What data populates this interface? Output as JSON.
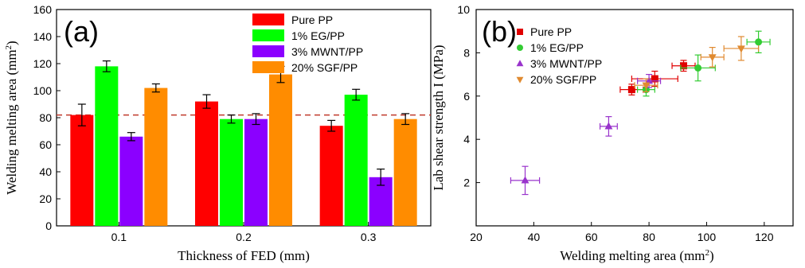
{
  "chart_data": [
    {
      "type": "bar",
      "panel_label": "(a)",
      "xlabel": "Thickness of FED (mm)",
      "ylabel": "Welding melting area (mm",
      "ylabel_sup": "2",
      "ylabel_close": ")",
      "ylim": [
        0,
        160
      ],
      "yticks": [
        "0",
        "20",
        "40",
        "60",
        "80",
        "100",
        "120",
        "140",
        "160"
      ],
      "categories": [
        "0.1",
        "0.2",
        "0.3"
      ],
      "reference_line": 82,
      "legend_position": "top-right",
      "series": [
        {
          "name": "Pure PP",
          "color": "#ff0000",
          "values": [
            82,
            92,
            74
          ],
          "errors": [
            8,
            5,
            4
          ]
        },
        {
          "name": "1%   EG/PP",
          "color": "#00ff00",
          "values": [
            118,
            79,
            97
          ],
          "errors": [
            4,
            3,
            4
          ]
        },
        {
          "name": "3%   MWNT/PP",
          "color": "#8b00ff",
          "values": [
            66,
            79,
            36
          ],
          "errors": [
            3,
            4,
            6
          ]
        },
        {
          "name": "20%  SGF/PP",
          "color": "#ff8c00",
          "values": [
            102,
            112,
            79
          ],
          "errors": [
            3,
            6,
            4
          ]
        }
      ]
    },
    {
      "type": "scatter",
      "panel_label": "(b)",
      "xlabel": "Welding melting area (mm",
      "xlabel_sup": "2",
      "xlabel_close": ")",
      "ylabel": "Lab shear strength I (MPa)",
      "xlim": [
        20,
        130
      ],
      "ylim": [
        0,
        10
      ],
      "xticks": [
        "20",
        "40",
        "60",
        "80",
        "100",
        "120"
      ],
      "yticks": [
        "2",
        "4",
        "6",
        "8",
        "10"
      ],
      "legend_position": "top-left",
      "series": [
        {
          "name": "Pure PP",
          "color": "#e00000",
          "marker": "square",
          "points": [
            [
              74,
              6.3,
              4,
              0.25
            ],
            [
              82,
              6.8,
              8,
              0.35
            ],
            [
              92,
              7.4,
              4,
              0.25
            ]
          ]
        },
        {
          "name": "1%   EG/PP",
          "color": "#33cc33",
          "marker": "circle",
          "points": [
            [
              79,
              6.3,
              3,
              0.3
            ],
            [
              97,
              7.3,
              6,
              0.6
            ],
            [
              118,
              8.5,
              4,
              0.5
            ]
          ]
        },
        {
          "name": "3%   MWNT/PP",
          "color": "#9933cc",
          "marker": "triangle-up",
          "points": [
            [
              37,
              2.1,
              5,
              0.65
            ],
            [
              66,
              4.6,
              3,
              0.45
            ],
            [
              80,
              6.7,
              4,
              0.3
            ]
          ]
        },
        {
          "name": "20%  SGF/PP",
          "color": "#e08a30",
          "marker": "triangle-down",
          "points": [
            [
              79,
              6.5,
              4,
              0.3
            ],
            [
              102,
              7.8,
              4,
              0.45
            ],
            [
              112,
              8.2,
              6,
              0.55
            ]
          ]
        }
      ]
    }
  ]
}
